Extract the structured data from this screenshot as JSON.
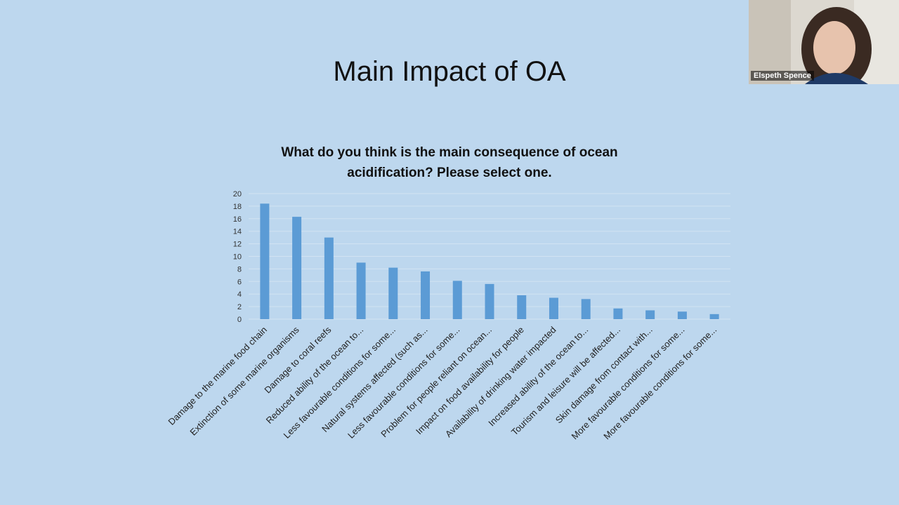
{
  "slide": {
    "title": "Main Impact of OA"
  },
  "video": {
    "participant_name": "Elspeth Spence"
  },
  "chart_data": {
    "type": "bar",
    "title": "What do you think is the main consequence of ocean acidification? Please select one.",
    "title_lines": [
      "What do you think is the main consequence of ocean",
      "acidification? Please select one."
    ],
    "xlabel": "",
    "ylabel": "",
    "ylim": [
      0,
      20
    ],
    "yticks": [
      0,
      2,
      4,
      6,
      8,
      10,
      12,
      14,
      16,
      18,
      20
    ],
    "grid": true,
    "legend": "none",
    "bar_color": "#5b9bd5",
    "categories": [
      "Damage to the marine food chain",
      "Extinction of some marine organisms",
      "Damage to coral reefs",
      "Reduced ability of the ocean to...",
      "Less favourable conditions for some...",
      "Natural systems affected (such as...",
      "Less favourable conditions for some...",
      "Problem for people reliant on ocean...",
      "Impact on food availability for people",
      "Availability of drinking water impacted",
      "Increased ability of the ocean to...",
      "Tourism and leisure will be affected...",
      "Skin damage from contact with...",
      "More favourable conditions for some...",
      "More favourable conditions for some..."
    ],
    "values": [
      18.4,
      16.3,
      13.0,
      9.0,
      8.2,
      7.6,
      6.1,
      5.6,
      3.8,
      3.4,
      3.2,
      1.7,
      1.4,
      1.2,
      0.8
    ]
  }
}
